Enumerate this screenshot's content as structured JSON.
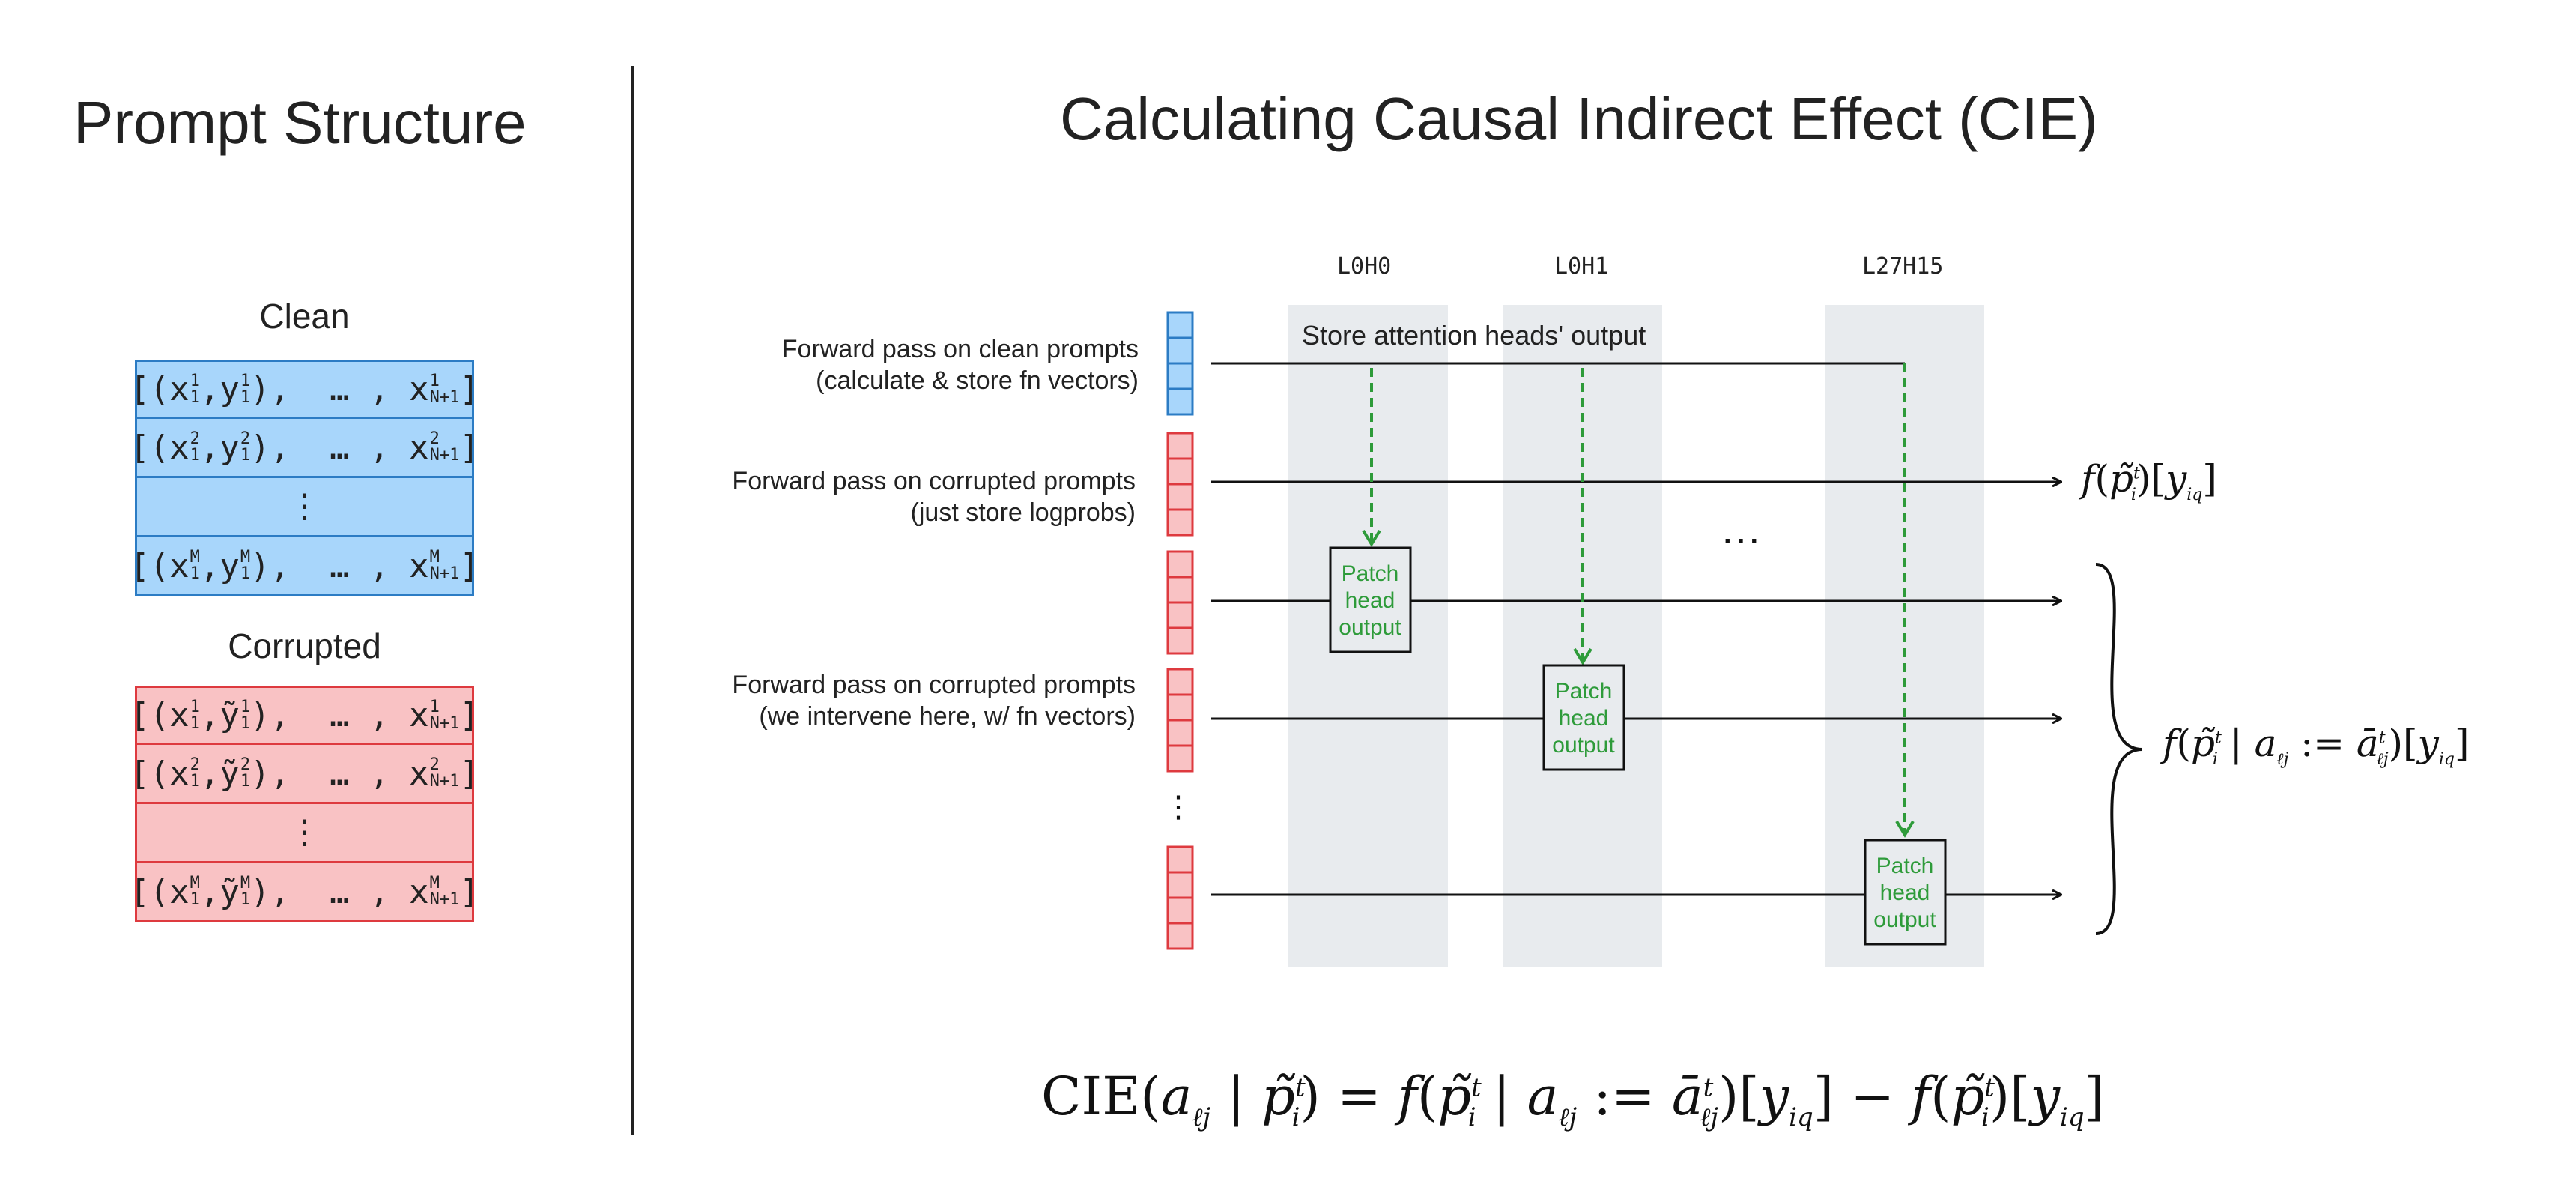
{
  "left_panel": {
    "title": "Prompt Structure",
    "clean": {
      "label": "Clean",
      "rows": [
        {
          "open": "[(x",
          "xsup": "1",
          "xsub": "1",
          "mid": ",y",
          "ysup": "1",
          "ysub": "1",
          "tail": "),  … , x",
          "tsup": "1",
          "tsub": "N+1",
          "close": "]"
        },
        {
          "open": "[(x",
          "xsup": "2",
          "xsub": "1",
          "mid": ",y",
          "ysup": "2",
          "ysub": "1",
          "tail": "),  … , x",
          "tsup": "2",
          "tsub": "N+1",
          "close": "]"
        },
        {
          "vdots": "⋮"
        },
        {
          "open": "[(x",
          "xsup": "M",
          "xsub": "1",
          "mid": ",y",
          "ysup": "M",
          "ysub": "1",
          "tail": "),  … , x",
          "tsup": "M",
          "tsub": "N+1",
          "close": "]"
        }
      ]
    },
    "corrupted": {
      "label": "Corrupted",
      "rows": [
        {
          "open": "[(x",
          "xsup": "1",
          "xsub": "1",
          "mid": ",ỹ",
          "ysup": "1",
          "ysub": "1",
          "tail": "),  … , x",
          "tsup": "1",
          "tsub": "N+1",
          "close": "]"
        },
        {
          "open": "[(x",
          "xsup": "2",
          "xsub": "1",
          "mid": ",ỹ",
          "ysup": "2",
          "ysub": "1",
          "tail": "),  … , x",
          "tsup": "2",
          "tsub": "N+1",
          "close": "]"
        },
        {
          "vdots": "⋮"
        },
        {
          "open": "[(x",
          "xsup": "M",
          "xsub": "1",
          "mid": ",ỹ",
          "ysup": "M",
          "ysub": "1",
          "tail": "),  … , x",
          "tsup": "M",
          "tsub": "N+1",
          "close": "]"
        }
      ]
    }
  },
  "right_panel": {
    "title": "Calculating Causal Indirect Effect (CIE)",
    "heads": [
      "L0H0",
      "L0H1",
      "L27H15"
    ],
    "store_label": "Store attention heads' output",
    "ellipsis": "…",
    "vdots": "⋮",
    "patch_label": [
      "Patch",
      "head",
      "output"
    ],
    "pass_labels": {
      "clean": [
        "Forward pass on clean prompts",
        "(calculate & store fn vectors)"
      ],
      "corrupted": [
        "Forward pass on corrupted prompts",
        "(just store logprobs)"
      ],
      "intervene": [
        "Forward pass on corrupted prompts",
        "(we intervene here, w/ fn vectors)"
      ]
    },
    "outputs": {
      "corrupted": "f(p̃ᵢᵗ)[y_iq]",
      "intervened": "f(p̃ᵢᵗ | a_ℓj := āᵗ_ℓj)[y_iq]"
    },
    "formula": "CIE(a_ℓj | p̃ᵢᵗ) = f(p̃ᵢᵗ | a_ℓj := āᵗ_ℓj)[y_iq] − f(p̃ᵢᵗ)[y_iq]"
  },
  "colors": {
    "clean_fill": "#a8d6fb",
    "clean_border": "#2c7cc4",
    "corrupted_fill": "#f9c2c4",
    "corrupted_border": "#de3a3f",
    "patch_green": "#2e9b3a",
    "head_column": "#e8ebee"
  }
}
